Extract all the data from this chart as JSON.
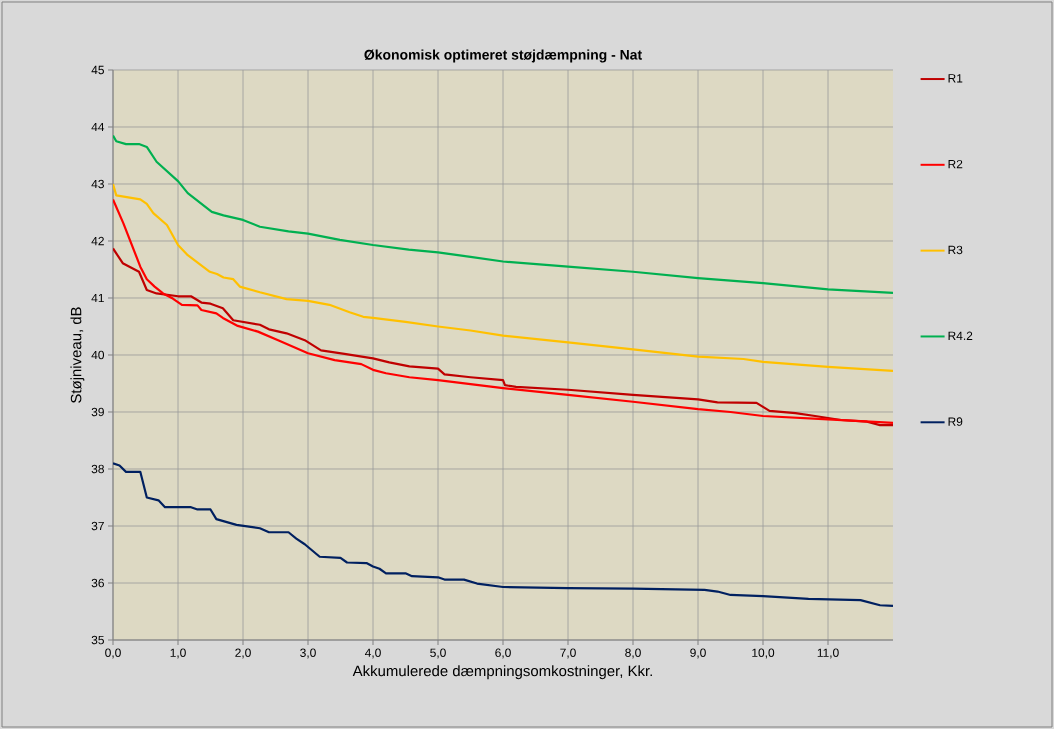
{
  "chart_data": {
    "type": "line",
    "title": "Økonomisk optimeret støjdæmpning - Nat",
    "xlabel": "Akkumulerede dæmpningsomkostninger, Kkr.",
    "ylabel": "Støjniveau, dB",
    "xlim": [
      0,
      12
    ],
    "ylim": [
      35,
      45
    ],
    "xticks": [
      {
        "value": 0,
        "label": "0,0"
      },
      {
        "value": 1,
        "label": "1,0"
      },
      {
        "value": 2,
        "label": "2,0"
      },
      {
        "value": 3,
        "label": "3,0"
      },
      {
        "value": 4,
        "label": "4,0"
      },
      {
        "value": 5,
        "label": "5,0"
      },
      {
        "value": 6,
        "label": "6,0"
      },
      {
        "value": 7,
        "label": "7,0"
      },
      {
        "value": 8,
        "label": "8,0"
      },
      {
        "value": 9,
        "label": "9,0"
      },
      {
        "value": 10,
        "label": "10,0"
      },
      {
        "value": 11,
        "label": "11,0"
      }
    ],
    "yticks": [
      35,
      36,
      37,
      38,
      39,
      40,
      41,
      42,
      43,
      44,
      45
    ],
    "grid": true,
    "legend": "right",
    "marker": "none",
    "line_style": "solid",
    "series": [
      {
        "name": "R1",
        "color": "#c00000",
        "x": [
          0,
          0.15,
          0.4,
          0.52,
          0.67,
          1.0,
          1.2,
          1.36,
          1.5,
          1.69,
          1.85,
          2.26,
          2.4,
          2.67,
          2.95,
          3.2,
          3.56,
          4.0,
          4.25,
          4.56,
          5.0,
          5.1,
          5.5,
          6.0,
          6.03,
          6.2,
          7.0,
          8.0,
          9.0,
          9.3,
          9.9,
          10.1,
          10.5,
          10.8,
          11.2,
          11.6,
          11.8,
          12.0
        ],
        "values": [
          41.87,
          41.61,
          41.46,
          41.14,
          41.08,
          41.03,
          41.03,
          40.92,
          40.9,
          40.82,
          40.61,
          40.53,
          40.45,
          40.38,
          40.26,
          40.08,
          40.02,
          39.94,
          39.87,
          39.8,
          39.76,
          39.66,
          39.61,
          39.56,
          39.47,
          39.44,
          39.39,
          39.3,
          39.22,
          39.17,
          39.16,
          39.02,
          38.98,
          38.93,
          38.86,
          38.83,
          38.77,
          38.77
        ]
      },
      {
        "name": "R2",
        "color": "#ff0000",
        "x": [
          0,
          0.16,
          0.42,
          0.52,
          0.64,
          0.77,
          0.92,
          1.06,
          1.3,
          1.36,
          1.59,
          1.69,
          1.92,
          2.23,
          2.54,
          3.0,
          3.41,
          3.82,
          4.0,
          4.2,
          4.56,
          5.0,
          5.5,
          6.0,
          7.0,
          8.0,
          9.0,
          9.5,
          10.0,
          11.0,
          12.0
        ],
        "values": [
          42.73,
          42.31,
          41.55,
          41.33,
          41.2,
          41.08,
          40.99,
          40.88,
          40.87,
          40.79,
          40.73,
          40.65,
          40.51,
          40.41,
          40.26,
          40.03,
          39.91,
          39.84,
          39.74,
          39.68,
          39.61,
          39.56,
          39.49,
          39.42,
          39.3,
          39.18,
          39.05,
          39.0,
          38.93,
          38.87,
          38.81
        ]
      },
      {
        "name": "R3",
        "color": "#ffc000",
        "x": [
          0,
          0.05,
          0.42,
          0.52,
          0.62,
          0.83,
          1.0,
          1.15,
          1.49,
          1.6,
          1.7,
          1.85,
          1.95,
          2.26,
          2.67,
          3.0,
          3.33,
          3.64,
          3.85,
          4.0,
          4.5,
          5.0,
          5.5,
          6.0,
          7.0,
          8.0,
          9.0,
          9.7,
          10.0,
          11.0,
          12.0
        ],
        "values": [
          43.0,
          42.8,
          42.73,
          42.65,
          42.49,
          42.28,
          41.93,
          41.75,
          41.46,
          41.42,
          41.36,
          41.33,
          41.2,
          41.1,
          40.98,
          40.95,
          40.88,
          40.75,
          40.67,
          40.65,
          40.58,
          40.5,
          40.43,
          40.34,
          40.22,
          40.1,
          39.97,
          39.93,
          39.88,
          39.79,
          39.72
        ]
      },
      {
        "name": "R4.2",
        "color": "#00b050",
        "x": [
          0,
          0.05,
          0.2,
          0.4,
          0.52,
          0.67,
          1.0,
          1.15,
          1.52,
          1.7,
          2.0,
          2.26,
          2.7,
          3.0,
          3.49,
          4.0,
          4.55,
          5.0,
          5.5,
          6.0,
          7.0,
          8.0,
          9.0,
          10.0,
          11.0,
          12.0
        ],
        "values": [
          43.85,
          43.75,
          43.7,
          43.7,
          43.65,
          43.39,
          43.05,
          42.84,
          42.51,
          42.45,
          42.37,
          42.25,
          42.17,
          42.13,
          42.02,
          41.93,
          41.85,
          41.8,
          41.72,
          41.64,
          41.55,
          41.46,
          41.35,
          41.26,
          41.15,
          41.09
        ]
      },
      {
        "name": "R9",
        "color": "#002060",
        "x": [
          0,
          0.1,
          0.2,
          0.42,
          0.52,
          0.7,
          0.8,
          1.2,
          1.3,
          1.5,
          1.59,
          1.9,
          2.26,
          2.4,
          2.7,
          2.82,
          2.95,
          3.18,
          3.5,
          3.6,
          3.9,
          4.0,
          4.1,
          4.2,
          4.5,
          4.6,
          5.0,
          5.1,
          5.4,
          5.6,
          6.0,
          7.0,
          8.0,
          9.1,
          9.3,
          9.5,
          10.0,
          10.7,
          11.5,
          11.8,
          12.0
        ],
        "values": [
          38.1,
          38.06,
          37.95,
          37.95,
          37.5,
          37.45,
          37.33,
          37.33,
          37.29,
          37.29,
          37.12,
          37.02,
          36.96,
          36.89,
          36.89,
          36.78,
          36.68,
          36.46,
          36.44,
          36.36,
          36.35,
          36.29,
          36.25,
          36.17,
          36.17,
          36.12,
          36.1,
          36.06,
          36.06,
          35.99,
          35.93,
          35.91,
          35.9,
          35.88,
          35.85,
          35.79,
          35.77,
          35.72,
          35.7,
          35.61,
          35.6
        ]
      }
    ]
  }
}
